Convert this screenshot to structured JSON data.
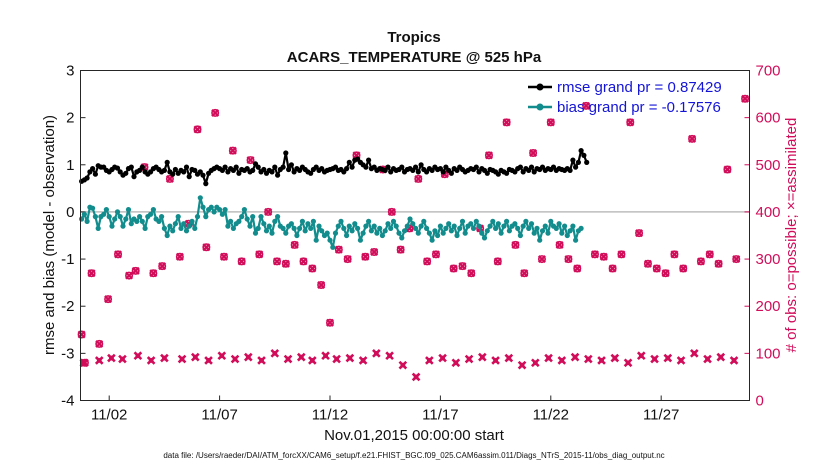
{
  "chart_data": {
    "type": "line",
    "title": "Tropics",
    "subtitle": "ACARS_TEMPERATURE @ 525 hPa",
    "xlabel": "Nov.01,2015 00:00:00 start",
    "ylabel": "rmse and bias (model - observation)",
    "ylabel_right": "# of obs: o=possible; ×=assimilated",
    "ylim": [
      -4,
      3
    ],
    "ylim_right": [
      0,
      700
    ],
    "yticks": [
      "-4",
      "-3",
      "-2",
      "-1",
      "0",
      "1",
      "2",
      "3"
    ],
    "yticks_right": [
      "0",
      "100",
      "200",
      "300",
      "400",
      "500",
      "600",
      "700"
    ],
    "xlim": [
      0.7,
      31.0
    ],
    "xticks": [
      {
        "x": 2,
        "label": "11/02"
      },
      {
        "x": 7,
        "label": "11/07"
      },
      {
        "x": 12,
        "label": "11/12"
      },
      {
        "x": 17,
        "label": "11/17"
      },
      {
        "x": 22,
        "label": "11/22"
      },
      {
        "x": 27,
        "label": "11/27"
      }
    ],
    "grid": false,
    "legend_position": "top-right",
    "zero_line": 0,
    "series": [
      {
        "name": "rmse grand pr = 0.87429",
        "color": "#000000",
        "x0": 0.75,
        "dx": 0.125,
        "values": [
          0.65,
          0.68,
          0.72,
          0.85,
          0.92,
          0.8,
          0.98,
          0.95,
          0.95,
          0.88,
          0.85,
          0.9,
          0.95,
          0.93,
          0.85,
          0.78,
          0.82,
          0.92,
          0.95,
          0.75,
          0.85,
          0.88,
          0.95,
          0.85,
          0.8,
          0.85,
          0.92,
          0.95,
          0.9,
          0.85,
          0.88,
          1.05,
          0.85,
          0.8,
          0.9,
          0.82,
          0.88,
          0.85,
          0.95,
          0.75,
          0.9,
          0.88,
          0.8,
          0.85,
          0.78,
          0.6,
          0.82,
          0.88,
          0.92,
          0.95,
          0.92,
          0.88,
          0.95,
          0.85,
          0.92,
          0.88,
          0.95,
          0.82,
          0.9,
          0.88,
          0.92,
          0.85,
          0.88,
          1.02,
          0.95,
          0.85,
          0.9,
          0.82,
          0.88,
          0.85,
          0.95,
          0.78,
          0.9,
          0.95,
          1.25,
          0.9,
          1.0,
          0.85,
          0.92,
          0.88,
          0.95,
          0.9,
          0.85,
          0.82,
          0.9,
          0.95,
          0.88,
          0.92,
          0.85,
          0.88,
          0.9,
          0.92,
          0.95,
          0.88,
          0.9,
          0.85,
          0.92,
          1.05,
          0.95,
          1.1,
          1.12,
          1.05,
          1.0,
          0.95,
          1.1,
          0.92,
          0.95,
          0.88,
          0.92,
          0.9,
          0.88,
          0.95,
          0.85,
          0.92,
          0.88,
          0.9,
          0.95,
          0.85,
          0.9,
          0.92,
          0.88,
          0.95,
          0.85,
          1.0,
          0.9,
          0.85,
          0.92,
          0.88,
          0.95,
          0.9,
          0.92,
          0.85,
          0.95,
          0.88,
          0.82,
          0.92,
          0.88,
          0.95,
          0.9,
          0.85,
          0.88,
          0.92,
          0.9,
          0.95,
          0.85,
          0.92,
          0.88,
          0.82,
          0.9,
          0.88,
          0.85,
          0.8,
          0.88,
          0.85,
          0.82,
          0.9,
          0.88,
          0.85,
          0.92,
          0.95,
          0.85,
          0.92,
          0.88,
          0.95,
          0.85,
          0.92,
          0.9,
          0.95,
          0.88,
          0.92,
          0.9,
          0.95,
          0.88,
          0.92,
          0.9,
          0.88,
          0.92,
          0.88,
          1.1,
          0.95,
          1.05,
          1.3,
          1.2,
          1.05
        ]
      },
      {
        "name": "bias grand pr = -0.17576",
        "color": "#128c8c",
        "x0": 0.75,
        "dx": 0.125,
        "values": [
          -0.15,
          -0.05,
          -0.2,
          0.1,
          0.08,
          -0.1,
          -0.35,
          -0.1,
          -0.05,
          0.05,
          -0.1,
          -0.3,
          -0.15,
          0.0,
          -0.1,
          -0.3,
          -0.15,
          0.05,
          -0.25,
          -0.15,
          -0.2,
          -0.1,
          -0.2,
          -0.35,
          -0.1,
          -0.05,
          0.05,
          -0.15,
          -0.2,
          -0.1,
          -0.35,
          -0.5,
          -0.3,
          -0.4,
          -0.25,
          -0.1,
          -0.35,
          -0.25,
          -0.4,
          -0.3,
          -0.2,
          -0.35,
          -0.1,
          0.3,
          0.1,
          -0.1,
          0.05,
          0.1,
          0.0,
          0.1,
          0.05,
          -0.05,
          0.05,
          -0.3,
          -0.2,
          -0.35,
          -0.25,
          -0.2,
          -0.1,
          0.05,
          -0.15,
          -0.3,
          -0.1,
          -0.45,
          -0.35,
          -0.1,
          -0.25,
          -0.4,
          -0.3,
          -0.45,
          -0.2,
          -0.1,
          -0.3,
          -0.35,
          -0.45,
          -0.3,
          -0.25,
          -0.35,
          -0.5,
          -0.35,
          -0.2,
          -0.4,
          -0.25,
          -0.35,
          -0.2,
          -0.6,
          -0.3,
          -0.4,
          -0.5,
          -0.45,
          -0.6,
          -0.75,
          -0.45,
          -0.3,
          -0.2,
          -0.35,
          -0.5,
          -0.3,
          -0.4,
          -0.25,
          -0.35,
          -0.6,
          -0.45,
          -0.3,
          -0.2,
          -0.4,
          -0.3,
          -0.45,
          -0.35,
          -0.5,
          -0.4,
          -0.25,
          -0.35,
          -0.2,
          -0.3,
          -0.45,
          -0.55,
          -0.4,
          -0.3,
          -0.15,
          -0.25,
          -0.35,
          -0.45,
          -0.3,
          -0.2,
          -0.35,
          -0.45,
          -0.6,
          -0.4,
          -0.5,
          -0.3,
          -0.45,
          -0.35,
          -0.25,
          -0.4,
          -0.3,
          -0.5,
          -0.35,
          -0.2,
          -0.45,
          -0.3,
          -0.25,
          -0.35,
          -0.2,
          -0.3,
          -0.45,
          -0.55,
          -0.4,
          -0.3,
          -0.2,
          -0.35,
          -0.25,
          -0.45,
          -0.3,
          -0.2,
          -0.4,
          -0.3,
          -0.25,
          -0.35,
          -0.5,
          -0.3,
          -0.2,
          -0.35,
          -0.25,
          -0.45,
          -0.35,
          -0.6,
          -0.4,
          -0.3,
          -0.45,
          -0.2,
          -0.3,
          -0.35,
          -0.25,
          -0.45,
          -0.3,
          -0.5,
          -0.4,
          -0.3,
          -0.6,
          -0.4,
          -0.35
        ]
      }
    ],
    "obs_possible": {
      "name": "possible",
      "color": "#d10d5a",
      "x": [
        0.75,
        0.9,
        1.2,
        1.55,
        1.95,
        2.4,
        2.9,
        3.2,
        3.6,
        4.0,
        4.4,
        4.75,
        5.2,
        5.6,
        6.0,
        6.4,
        6.8,
        7.2,
        7.6,
        8.0,
        8.4,
        8.8,
        9.2,
        9.6,
        10.0,
        10.4,
        10.8,
        11.2,
        11.6,
        12.0,
        12.4,
        12.8,
        13.2,
        13.6,
        14.0,
        14.4,
        14.8,
        15.2,
        15.6,
        16.0,
        16.4,
        16.8,
        17.2,
        17.6,
        18.0,
        18.4,
        18.8,
        19.2,
        19.6,
        20.0,
        20.4,
        20.8,
        21.2,
        21.6,
        22.0,
        22.4,
        22.8,
        23.2,
        23.6,
        24.0,
        24.4,
        24.8,
        25.2,
        25.6,
        26.0,
        26.4,
        26.8,
        27.2,
        27.6,
        28.0,
        28.4,
        28.8,
        29.2,
        29.6,
        30.0,
        30.4,
        30.8
      ],
      "values": [
        140,
        80,
        270,
        120,
        215,
        310,
        265,
        275,
        495,
        270,
        285,
        470,
        305,
        375,
        575,
        325,
        610,
        305,
        530,
        295,
        510,
        310,
        400,
        295,
        290,
        330,
        295,
        280,
        245,
        165,
        320,
        300,
        520,
        305,
        315,
        490,
        400,
        320,
        365,
        470,
        295,
        310,
        480,
        280,
        285,
        270,
        365,
        520,
        295,
        590,
        330,
        270,
        525,
        300,
        590,
        330,
        300,
        280,
        625,
        310,
        305,
        280,
        310,
        590,
        355,
        290,
        280,
        270,
        310,
        280,
        555,
        295,
        310,
        290,
        490,
        300,
        640
      ]
    },
    "obs_assimilated": {
      "name": "assimilated",
      "color": "#d10d5a",
      "x": [
        0.85,
        1.55,
        2.1,
        2.6,
        3.3,
        3.9,
        4.5,
        5.3,
        5.9,
        6.5,
        7.1,
        7.7,
        8.3,
        8.9,
        9.5,
        10.1,
        10.7,
        11.2,
        11.8,
        12.3,
        12.9,
        13.5,
        14.1,
        14.7,
        15.3,
        15.9,
        16.5,
        17.1,
        17.7,
        18.3,
        18.9,
        19.5,
        20.1,
        20.7,
        21.3,
        21.9,
        22.5,
        23.1,
        23.7,
        24.3,
        24.9,
        25.5,
        26.1,
        26.7,
        27.3,
        27.9,
        28.5,
        29.1,
        29.7,
        30.3
      ],
      "values": [
        80,
        85,
        90,
        88,
        95,
        85,
        90,
        88,
        92,
        85,
        95,
        88,
        92,
        85,
        100,
        88,
        92,
        85,
        95,
        88,
        90,
        85,
        100,
        95,
        75,
        50,
        85,
        90,
        80,
        88,
        92,
        85,
        90,
        75,
        80,
        90,
        85,
        92,
        88,
        85,
        90,
        80,
        95,
        88,
        90,
        85,
        100,
        88,
        92,
        85
      ]
    },
    "footer": "data file: /Users/raeder/DAI/ATM_forcXX/CAM6_setup/f.e21.FHIST_BGC.f09_025.CAM6assim.011/Diags_NTrS_2015-11/obs_diag_output.nc"
  }
}
